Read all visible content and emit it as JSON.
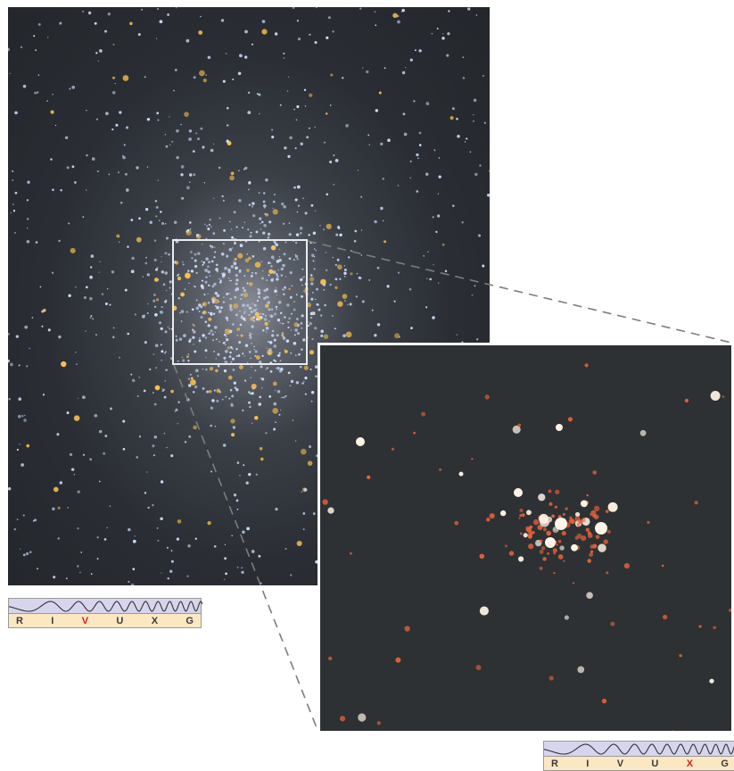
{
  "panels": {
    "optical": {
      "name": "optical-view"
    },
    "xray": {
      "name": "xray-view"
    }
  },
  "spectrum_optical": {
    "bands": [
      "R",
      "I",
      "V",
      "U",
      "X",
      "G"
    ],
    "active": "V",
    "active_color": "#d0221a"
  },
  "spectrum_xray": {
    "bands": [
      "R",
      "I",
      "V",
      "U",
      "X",
      "G"
    ],
    "active": "X",
    "active_color": "#d0221a"
  },
  "colors": {
    "optical_star_blue": "#cfe1ff",
    "optical_star_gold": "#ffc24a",
    "xray_star_orange": "#e8623a",
    "xray_star_white": "#fff5e6",
    "connector": "#888888"
  }
}
